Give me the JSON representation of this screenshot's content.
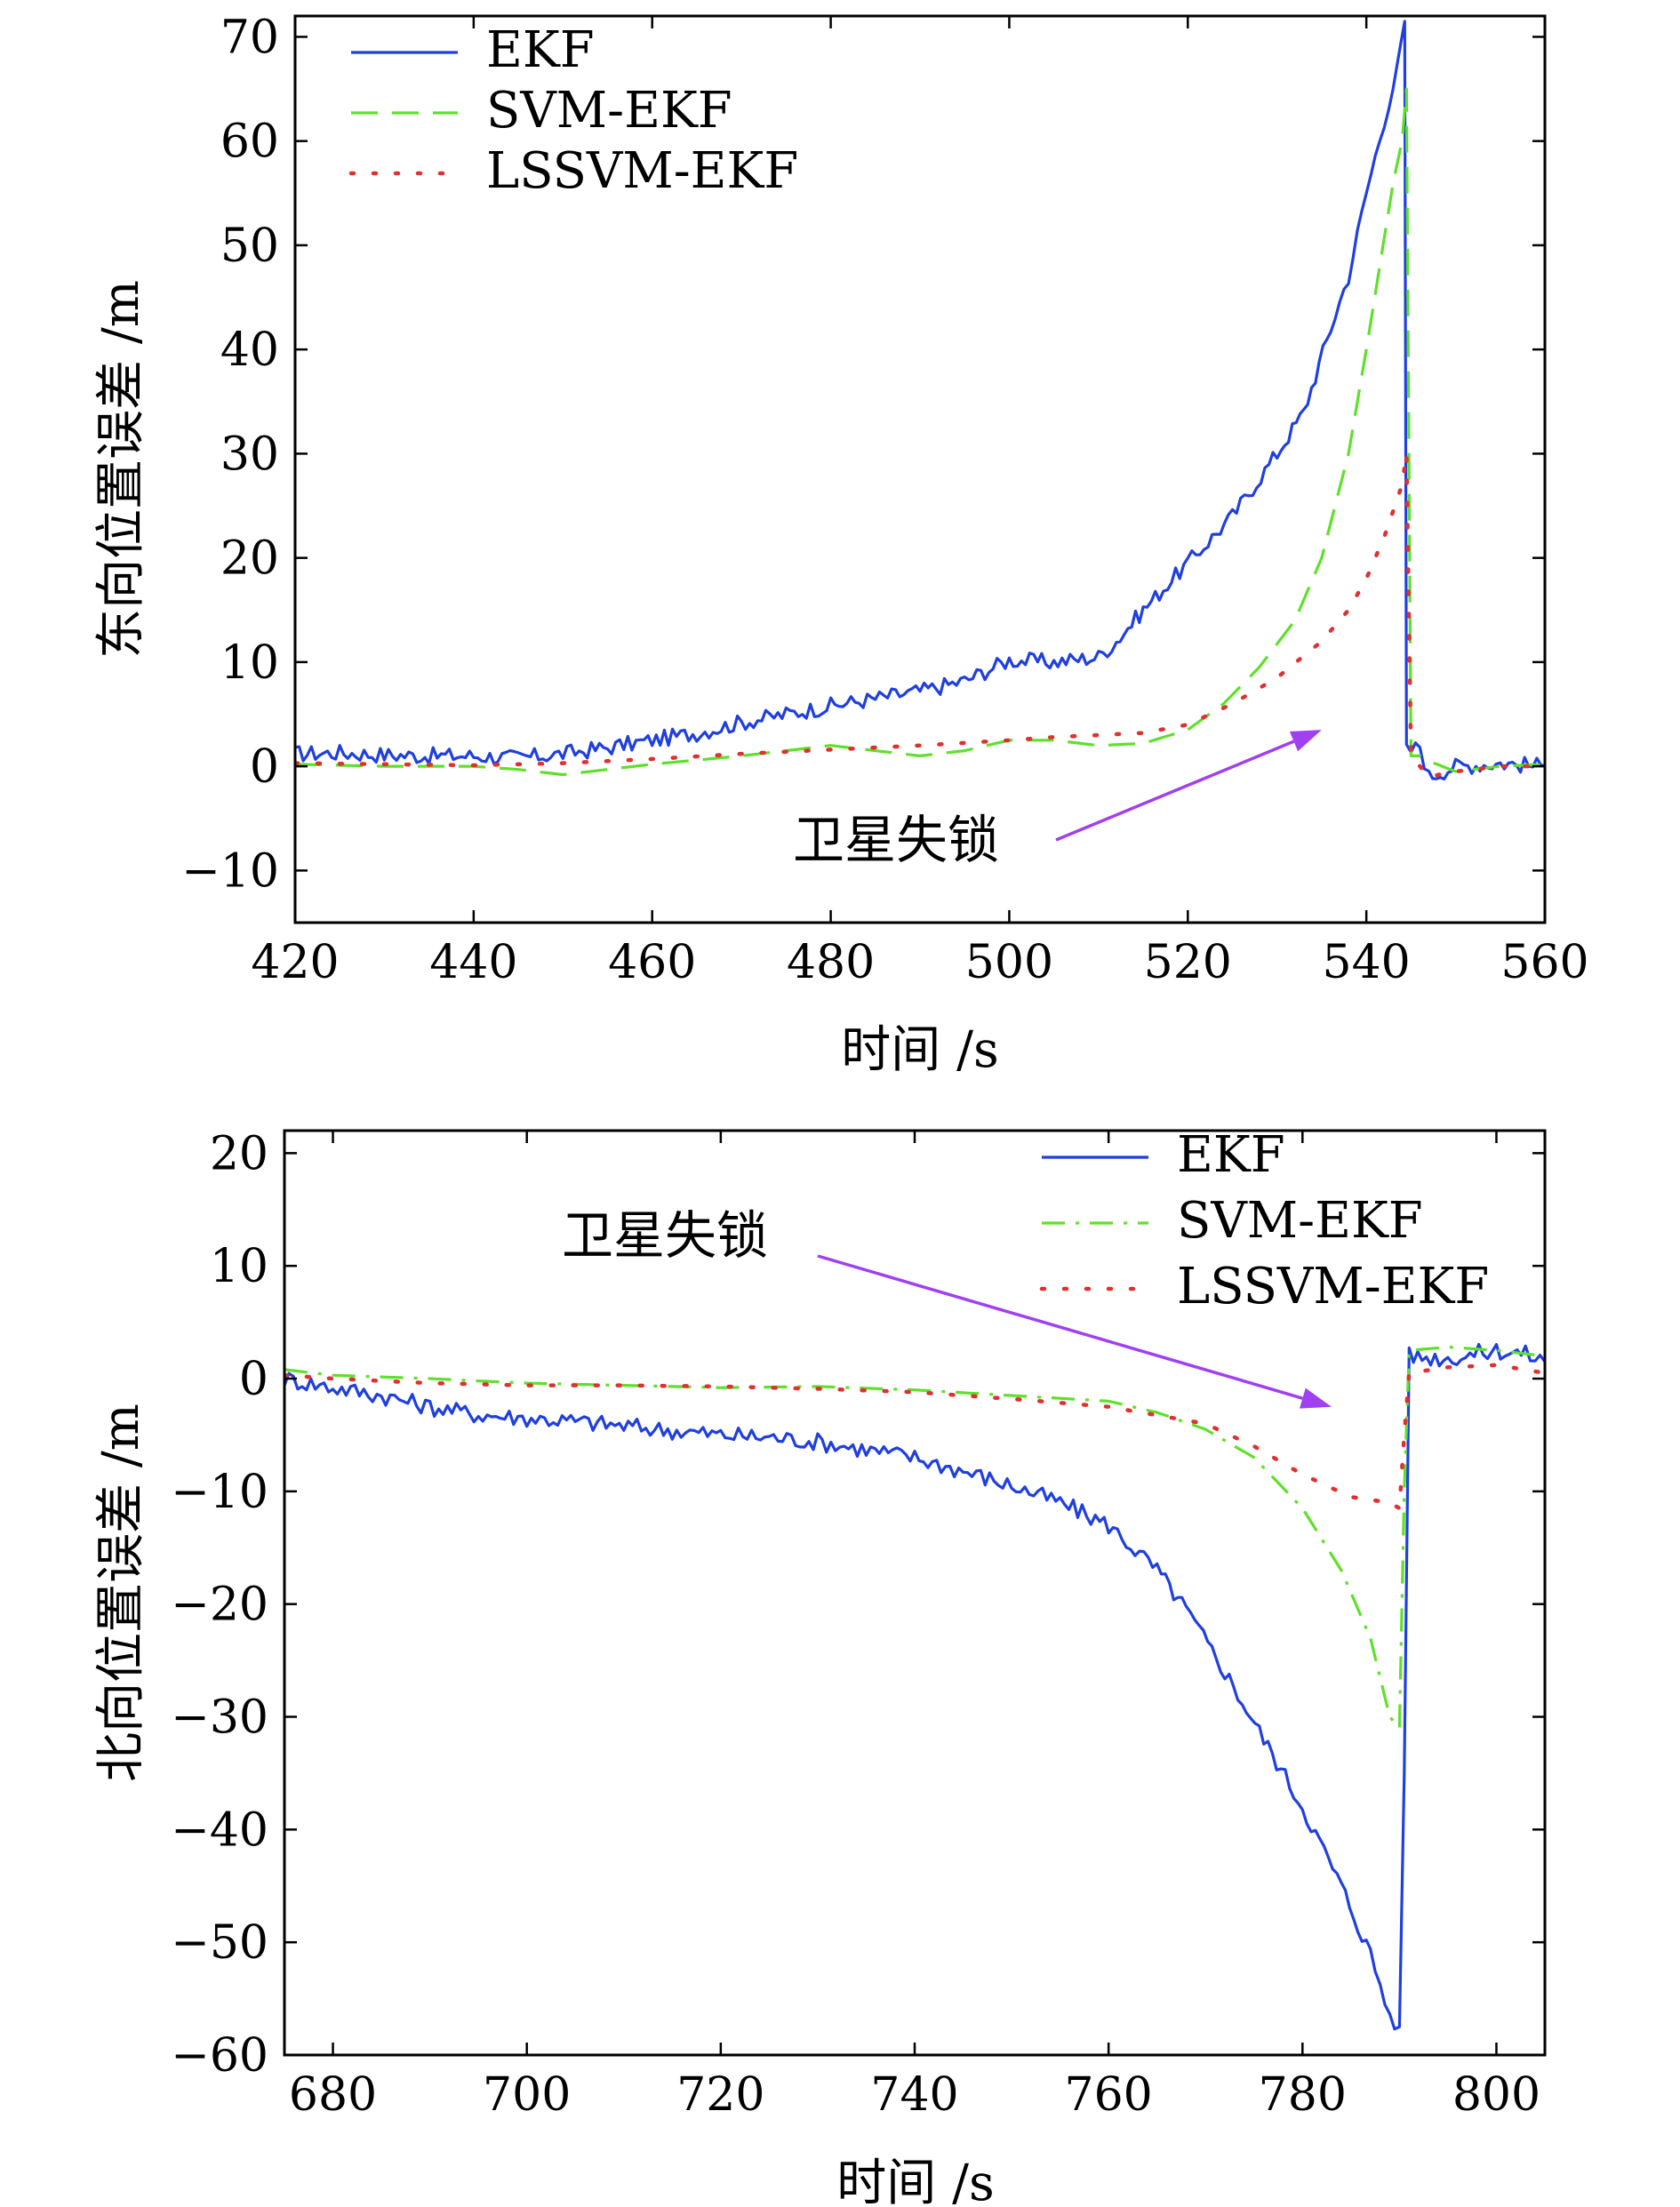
{
  "chart_data": [
    {
      "type": "line",
      "xlabel": "时间 /s",
      "ylabel": "东向位置误差 /m",
      "xlim": [
        420,
        560
      ],
      "ylim": [
        -15,
        72
      ],
      "xticks": [
        420,
        440,
        460,
        480,
        500,
        520,
        540,
        560
      ],
      "xtick_labels": [
        "420",
        "440",
        "460",
        "480",
        "500",
        "520",
        "540",
        "560"
      ],
      "yticks": [
        -10,
        0,
        10,
        20,
        30,
        40,
        50,
        60,
        70
      ],
      "ytick_labels": [
        "−10",
        "0",
        "10",
        "20",
        "30",
        "40",
        "50",
        "60",
        "70"
      ],
      "grid": false,
      "legend_position": "top-left",
      "annotation": {
        "text": "卫星失锁",
        "arrow_from": [
          510,
          -7
        ],
        "arrow_to": [
          535,
          3.5
        ]
      },
      "series": [
        {
          "name": "EKF",
          "color": "#1f3fe0",
          "style": "solid",
          "x": [
            420,
            425,
            430,
            435,
            440,
            445,
            450,
            455,
            460,
            465,
            470,
            475,
            480,
            485,
            490,
            495,
            500,
            505,
            510,
            512,
            515,
            520,
            525,
            530,
            533,
            536,
            538,
            540,
            542,
            543.5,
            544.3,
            544.5,
            545,
            546,
            547,
            550,
            555,
            560
          ],
          "y": [
            1.2,
            1.3,
            1.1,
            1.0,
            1.0,
            0.8,
            1.2,
            1.8,
            2.5,
            3.2,
            4.2,
            5.0,
            5.8,
            6.5,
            7.2,
            8.2,
            10.2,
            10.0,
            10.5,
            12.0,
            15.0,
            19.5,
            24.0,
            30.0,
            34.0,
            42.0,
            47.0,
            55.0,
            62.0,
            67.0,
            71.5,
            1.5,
            1.5,
            2.0,
            -1.0,
            0.0,
            0.3,
            0.0
          ]
        },
        {
          "name": "SVM-EKF",
          "color": "#5fe02a",
          "style": "dashed",
          "x": [
            420,
            425,
            430,
            435,
            440,
            445,
            450,
            455,
            460,
            465,
            470,
            475,
            480,
            485,
            490,
            495,
            500,
            505,
            510,
            515,
            520,
            524,
            528,
            532,
            535,
            538,
            540,
            541.5,
            543,
            544,
            544.5,
            545,
            546,
            547,
            550,
            555,
            560
          ],
          "y": [
            0.2,
            0.1,
            0.0,
            0.0,
            0.0,
            -0.3,
            -0.8,
            -0.3,
            0.2,
            0.6,
            1.0,
            1.5,
            2.0,
            1.5,
            1.0,
            1.5,
            2.5,
            2.5,
            2.0,
            2.2,
            3.5,
            6.0,
            9.5,
            14.0,
            20.0,
            30.0,
            40.0,
            48.0,
            56.0,
            60.0,
            65.0,
            1.0,
            1.0,
            0.5,
            -0.5,
            0.0,
            0.2
          ]
        },
        {
          "name": "LSSVM-EKF",
          "color": "#e03030",
          "style": "dotted",
          "x": [
            420,
            430,
            440,
            450,
            460,
            470,
            480,
            490,
            500,
            505,
            510,
            515,
            520,
            525,
            530,
            535,
            538,
            540,
            542,
            544,
            544.5,
            545,
            547,
            550,
            555,
            560
          ],
          "y": [
            0.3,
            0.2,
            0.1,
            0.3,
            0.7,
            1.2,
            1.6,
            2.0,
            2.5,
            2.8,
            3.0,
            3.2,
            4.0,
            6.0,
            8.5,
            12.0,
            15.0,
            18.0,
            22.0,
            27.0,
            30.0,
            1.0,
            -1.0,
            -0.5,
            0.0,
            0.0
          ]
        }
      ]
    },
    {
      "type": "line",
      "xlabel": "时间 /s",
      "ylabel": "北向位置误差 /m",
      "xlim": [
        675,
        805
      ],
      "ylim": [
        -60,
        22
      ],
      "xticks": [
        680,
        700,
        720,
        740,
        760,
        780,
        800
      ],
      "xtick_labels": [
        "680",
        "700",
        "720",
        "740",
        "760",
        "780",
        "800"
      ],
      "yticks": [
        -60,
        -50,
        -40,
        -30,
        -20,
        -10,
        0,
        10,
        20
      ],
      "ytick_labels": [
        "−60",
        "−50",
        "−40",
        "−30",
        "−20",
        "−10",
        "0",
        "10",
        "20"
      ],
      "grid": false,
      "legend_position": "top-right",
      "annotation": {
        "text": "卫星失锁",
        "arrow_from": [
          730,
          10.5
        ],
        "arrow_to": [
          783,
          -2.5
        ]
      },
      "series": [
        {
          "name": "EKF",
          "color": "#1f3fe0",
          "style": "solid",
          "x": [
            675,
            680,
            685,
            690,
            695,
            700,
            705,
            710,
            715,
            720,
            725,
            730,
            735,
            740,
            745,
            750,
            755,
            760,
            765,
            768,
            772,
            776,
            780,
            784,
            787,
            789,
            790,
            790.5,
            791,
            795,
            800,
            803,
            805
          ],
          "y": [
            0.0,
            -0.8,
            -1.5,
            -2.5,
            -3.2,
            -3.5,
            -3.8,
            -4.2,
            -4.6,
            -5.0,
            -5.2,
            -5.6,
            -6.3,
            -7.0,
            -8.2,
            -9.5,
            -11.0,
            -13.0,
            -17.0,
            -20.5,
            -26.0,
            -32.0,
            -38.0,
            -45.0,
            -51.0,
            -56.5,
            -57.5,
            -35.0,
            2.0,
            1.8,
            2.5,
            2.2,
            1.5
          ]
        },
        {
          "name": "SVM-EKF",
          "color": "#5fe02a",
          "style": "dashdot",
          "x": [
            675,
            680,
            690,
            700,
            710,
            720,
            730,
            740,
            750,
            760,
            765,
            770,
            775,
            780,
            784,
            787,
            789,
            790,
            790.5,
            791,
            795,
            800,
            805
          ],
          "y": [
            0.8,
            0.3,
            0.0,
            -0.4,
            -0.6,
            -0.8,
            -0.7,
            -1.0,
            -1.5,
            -2.0,
            -3.0,
            -4.5,
            -7.0,
            -11.5,
            -17.0,
            -23.0,
            -30.0,
            -31.0,
            -10.0,
            2.5,
            2.8,
            2.5,
            2.0
          ]
        },
        {
          "name": "LSSVM-EKF",
          "color": "#e03030",
          "style": "dotted",
          "x": [
            675,
            680,
            690,
            700,
            710,
            720,
            730,
            740,
            750,
            760,
            770,
            775,
            780,
            785,
            789,
            790,
            790.5,
            791,
            795,
            800,
            805
          ],
          "y": [
            0.3,
            0.0,
            -0.4,
            -0.6,
            -0.6,
            -0.7,
            -0.9,
            -1.2,
            -1.8,
            -2.5,
            -4.0,
            -6.0,
            -8.5,
            -10.5,
            -11.0,
            -11.5,
            -5.0,
            0.5,
            1.0,
            1.2,
            0.5
          ]
        }
      ]
    }
  ]
}
